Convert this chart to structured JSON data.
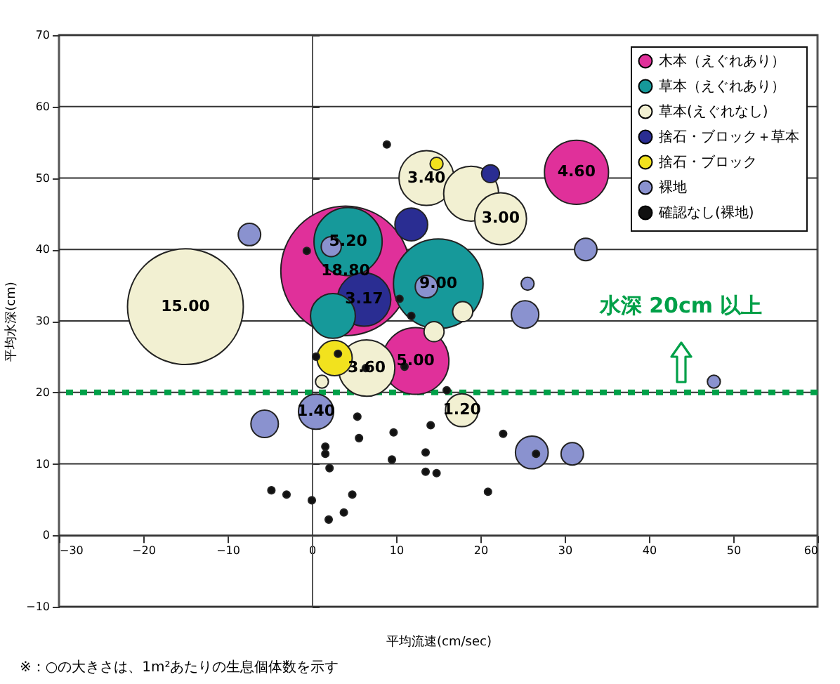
{
  "chart_data": {
    "type": "bubble",
    "xlabel": "平均流速(cm/sec)",
    "ylabel": "平均水深(cm)",
    "xlim": [
      -30,
      60
    ],
    "xticks": [
      -30,
      -20,
      -10,
      0,
      10,
      20,
      30,
      40,
      50,
      60
    ],
    "ylim": [
      -10,
      70
    ],
    "yticks": [
      -10,
      0,
      10,
      20,
      30,
      40,
      50,
      60,
      70
    ],
    "grid": "y",
    "legend": "top right",
    "series": [
      {
        "name": "木本（えぐれあり）",
        "color": "#e0309a",
        "x": [
          4,
          31.4,
          12.3
        ],
        "values": [
          37,
          50.8,
          24.4
        ],
        "sizes": [
          1,
          0.245,
          0.266
        ]
      },
      {
        "name": "草本（えぐれあり）",
        "color": "#16999a",
        "x": [
          4.3,
          15,
          2.5
        ],
        "values": [
          41.1,
          35.2,
          30.7
        ],
        "sizes": [
          0.277,
          0.479,
          0.12
        ]
      },
      {
        "name": "草本(えぐれなし)",
        "color": "#f2f0d2",
        "x": [
          -15,
          13.6,
          22.4,
          18.9,
          6.5,
          17.8,
          17.9,
          14.5,
          1.2
        ],
        "values": [
          32,
          50,
          44.3,
          47.8,
          23.4,
          17.5,
          31.3,
          28.5,
          21.5
        ],
        "sizes": [
          0.8,
          0.18,
          0.16,
          0.18,
          0.19,
          0.064,
          0.024,
          0.024,
          0.01
        ]
      },
      {
        "name": "捨石・ブロック＋草本",
        "color": "#2a2d92",
        "x": [
          6.2,
          11.8,
          21.2
        ],
        "values": [
          33,
          43.5,
          50.6
        ],
        "sizes": [
          0.17,
          0.064,
          0.019
        ]
      },
      {
        "name": "捨石・ブロック",
        "color": "#f2e21e",
        "x": [
          2.7,
          14.8
        ],
        "values": [
          24.8,
          52
        ],
        "sizes": [
          0.074,
          0.01
        ]
      },
      {
        "name": "裸地",
        "color": "#8a92cf",
        "x": [
          -7.4,
          0.5,
          -5.6,
          2.3,
          13.6,
          25.6,
          25.3,
          32.5,
          47.7,
          26.1,
          30.9
        ],
        "values": [
          42.1,
          17.3,
          15.6,
          40.4,
          34.8,
          35.2,
          30.9,
          40,
          21.5,
          11.6,
          11.4
        ],
        "sizes": [
          0.03,
          0.074,
          0.045,
          0.024,
          0.03,
          0.01,
          0.045,
          0.03,
          0.01,
          0.064,
          0.03
        ]
      },
      {
        "name": "確認なし(裸地)",
        "color": "#111111",
        "x": [
          0.5,
          3.1,
          6.4,
          11,
          10.4,
          11.8,
          16,
          5.4,
          5.6,
          1.6,
          1.6,
          2.1,
          9.7,
          9.5,
          14.1,
          13.5,
          13.5,
          14.8,
          22.7,
          20.9,
          0,
          4.8,
          3.8,
          2,
          26.6,
          -4.8,
          -3,
          -0.6,
          8.9
        ],
        "values": [
          25,
          25.4,
          23.4,
          23.6,
          33.1,
          30.7,
          20.3,
          16.6,
          13.6,
          12.4,
          11.4,
          9.4,
          14.4,
          10.6,
          15.4,
          11.6,
          8.9,
          8.7,
          14.2,
          6.1,
          4.9,
          5.7,
          3.2,
          2.2,
          11.4,
          6.3,
          5.7,
          39.8,
          54.7
        ],
        "sizes": [
          0.003,
          0.003,
          0.003,
          0.003,
          0.003,
          0.003,
          0.003,
          0.003,
          0.003,
          0.003,
          0.003,
          0.003,
          0.003,
          0.003,
          0.003,
          0.003,
          0.003,
          0.003,
          0.003,
          0.003,
          0.003,
          0.003,
          0.003,
          0.003,
          0.003,
          0.003,
          0.003,
          0.003,
          0.003
        ]
      }
    ],
    "ref_lines": [
      {
        "axis": "y",
        "value": 20,
        "label": "水深 20cm 以上",
        "color": "#00a048",
        "line_style": "dotted"
      }
    ],
    "annotations": [
      {
        "text": "18.80",
        "x": 4,
        "y": 37
      },
      {
        "text": "4.60",
        "x": 31.4,
        "y": 50.8
      },
      {
        "text": "5.00",
        "x": 12.3,
        "y": 24.4
      },
      {
        "text": "5.20",
        "x": 4.3,
        "y": 41.1
      },
      {
        "text": "9.00",
        "x": 15,
        "y": 35.2
      },
      {
        "text": "15.00",
        "x": -15,
        "y": 32
      },
      {
        "text": "3.40",
        "x": 13.6,
        "y": 50
      },
      {
        "text": "3.00",
        "x": 22.4,
        "y": 44.3
      },
      {
        "text": "3.60",
        "x": 6.5,
        "y": 23.4
      },
      {
        "text": "1.20",
        "x": 17.8,
        "y": 17.5
      },
      {
        "text": "3.17",
        "x": 6.2,
        "y": 33
      },
      {
        "text": "1.40",
        "x": 0.5,
        "y": 17.3
      },
      "※：○の大きさは、1m²あたりの生息個体数を示す"
    ]
  }
}
